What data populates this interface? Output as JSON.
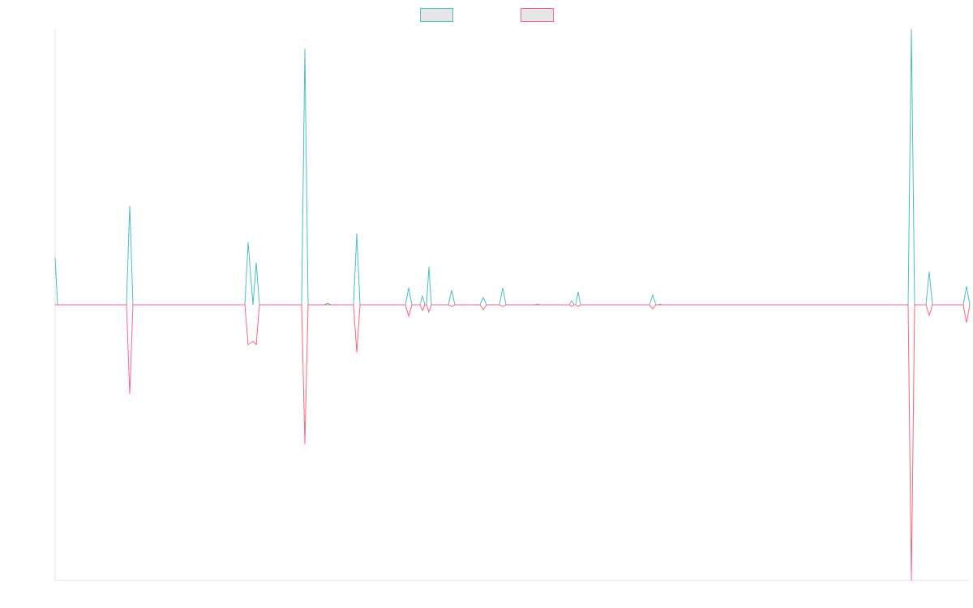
{
  "chart_data": {
    "type": "line",
    "title": "",
    "xlabel": "",
    "ylabel": "",
    "grid": false,
    "legend_position": "top-center",
    "ylim": [
      -340,
      340
    ],
    "series": [
      {
        "color": "#4bc0c0",
        "points": [
          [
            0,
            58
          ],
          [
            3,
            0
          ],
          [
            88,
            0
          ],
          [
            92,
            122
          ],
          [
            96,
            0
          ],
          [
            234,
            0
          ],
          [
            238,
            77
          ],
          [
            244,
            0
          ],
          [
            248,
            52
          ],
          [
            252,
            0
          ],
          [
            304,
            0
          ],
          [
            308,
            316
          ],
          [
            312,
            0
          ],
          [
            332,
            0
          ],
          [
            336,
            2
          ],
          [
            340,
            0
          ],
          [
            368,
            0
          ],
          [
            372,
            88
          ],
          [
            376,
            0
          ],
          [
            432,
            0
          ],
          [
            436,
            21
          ],
          [
            440,
            0
          ],
          [
            450,
            0
          ],
          [
            453,
            11
          ],
          [
            456,
            0
          ],
          [
            458,
            0
          ],
          [
            461,
            47
          ],
          [
            464,
            0
          ],
          [
            485,
            0
          ],
          [
            489,
            18
          ],
          [
            493,
            0
          ],
          [
            524,
            0
          ],
          [
            528,
            9
          ],
          [
            532,
            0
          ],
          [
            548,
            0
          ],
          [
            552,
            21
          ],
          [
            556,
            0
          ],
          [
            592,
            0
          ],
          [
            595,
            1
          ],
          [
            598,
            0
          ],
          [
            634,
            0
          ],
          [
            637,
            5
          ],
          [
            640,
            0
          ],
          [
            642,
            0
          ],
          [
            645,
            16
          ],
          [
            648,
            0
          ],
          [
            733,
            0
          ],
          [
            737,
            12
          ],
          [
            741,
            0
          ],
          [
            744,
            0
          ],
          [
            746,
            1
          ],
          [
            748,
            0
          ],
          [
            1052,
            0
          ],
          [
            1056,
            340
          ],
          [
            1060,
            0
          ],
          [
            1074,
            0
          ],
          [
            1078,
            41
          ],
          [
            1082,
            0
          ],
          [
            1120,
            0
          ],
          [
            1124,
            23
          ],
          [
            1128,
            0
          ]
        ]
      },
      {
        "color": "#ff6384",
        "points": [
          [
            0,
            0
          ],
          [
            88,
            0
          ],
          [
            92,
            -110
          ],
          [
            96,
            0
          ],
          [
            234,
            0
          ],
          [
            238,
            -49
          ],
          [
            244,
            -45
          ],
          [
            248,
            -49
          ],
          [
            252,
            0
          ],
          [
            304,
            0
          ],
          [
            308,
            -172
          ],
          [
            312,
            0
          ],
          [
            368,
            0
          ],
          [
            372,
            -59
          ],
          [
            376,
            0
          ],
          [
            432,
            0
          ],
          [
            436,
            -14
          ],
          [
            440,
            0
          ],
          [
            450,
            0
          ],
          [
            453,
            -7
          ],
          [
            456,
            0
          ],
          [
            458,
            0
          ],
          [
            461,
            -9
          ],
          [
            464,
            0
          ],
          [
            485,
            0
          ],
          [
            489,
            -2
          ],
          [
            493,
            0
          ],
          [
            524,
            0
          ],
          [
            528,
            -6
          ],
          [
            532,
            0
          ],
          [
            548,
            0
          ],
          [
            552,
            -2
          ],
          [
            556,
            0
          ],
          [
            634,
            0
          ],
          [
            637,
            -2
          ],
          [
            640,
            0
          ],
          [
            642,
            0
          ],
          [
            645,
            -2
          ],
          [
            648,
            0
          ],
          [
            733,
            0
          ],
          [
            737,
            -5
          ],
          [
            741,
            0
          ],
          [
            1052,
            0
          ],
          [
            1056,
            -340
          ],
          [
            1060,
            0
          ],
          [
            1074,
            0
          ],
          [
            1078,
            -13
          ],
          [
            1082,
            0
          ],
          [
            1120,
            0
          ],
          [
            1124,
            -22
          ],
          [
            1128,
            0
          ]
        ]
      }
    ],
    "xlim": [
      0,
      1128
    ]
  }
}
